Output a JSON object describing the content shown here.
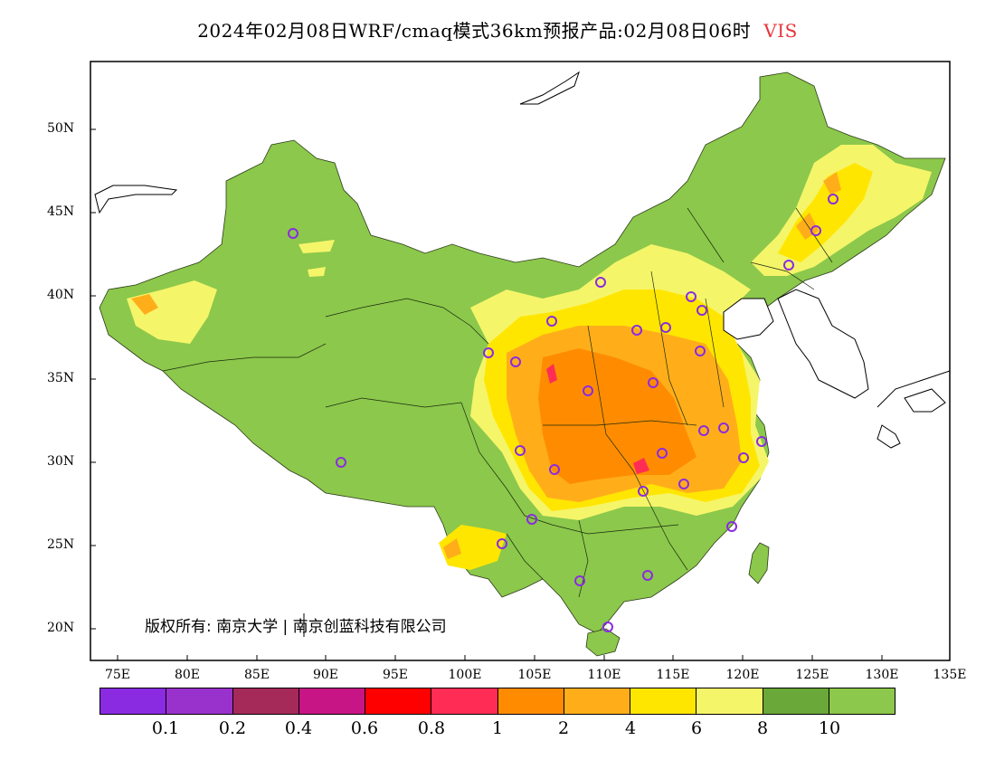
{
  "title": {
    "main": "2024年02月08日WRF/cmaq模式36km预报产品:02月08日06时",
    "variable": "VIS",
    "variable_color": "#e8343a"
  },
  "copyright": "版权所有: 南京大学 | 南京创蓝科技有限公司",
  "axes": {
    "lat_labels": [
      "50N",
      "45N",
      "40N",
      "35N",
      "30N",
      "25N",
      "20N"
    ],
    "lon_labels": [
      "75E",
      "80E",
      "85E",
      "90E",
      "95E",
      "100E",
      "105E",
      "110E",
      "115E",
      "120E",
      "125E",
      "130E",
      "135E"
    ]
  },
  "legend": {
    "colors": [
      "#8a2be2",
      "#9932cc",
      "#a52a5a",
      "#c71585",
      "#ff0000",
      "#ff2d55",
      "#ff8c00",
      "#ffae1a",
      "#ffe600",
      "#f5f56a",
      "#6aa83a",
      "#8cc84b"
    ],
    "labels": [
      "0.1",
      "0.2",
      "0.4",
      "0.6",
      "0.8",
      "1",
      "2",
      "4",
      "6",
      "8",
      "10"
    ]
  },
  "palette": {
    "land_default": "#8cc84b",
    "land_dark": "#6aa83a",
    "ocean": "#ffffff",
    "vis_4_6": "#ffe600",
    "vis_6_8": "#f5f56a",
    "vis_2_4": "#ffae1a",
    "vis_1_2": "#ff8c00",
    "vis_lt_1": "#ff2d55",
    "station_marker": "#8a2be2"
  }
}
